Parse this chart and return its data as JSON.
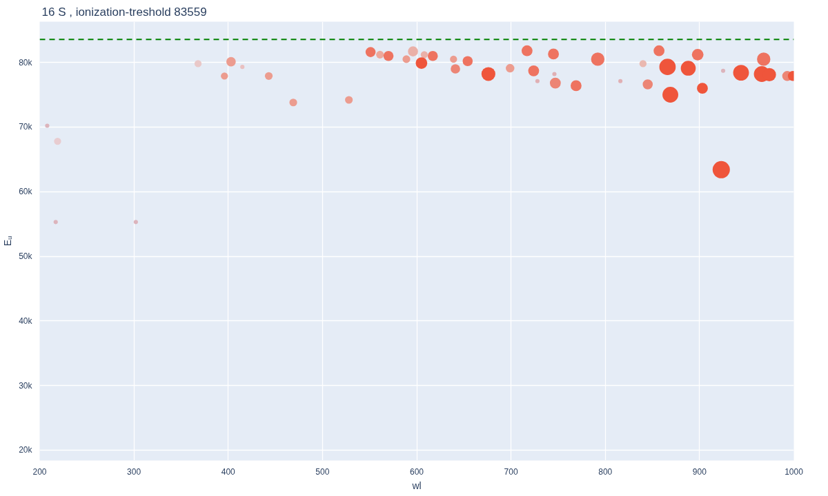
{
  "chart_data": {
    "type": "bubble",
    "title": "16 S , ionization-treshold 83559",
    "xlabel": "wl",
    "ylabel": "Eᵤ",
    "xlim": [
      200,
      1000
    ],
    "ylim": [
      18400,
      86300
    ],
    "xticks": [
      200,
      300,
      400,
      500,
      600,
      700,
      800,
      900,
      1000
    ],
    "yticks": [
      {
        "value": 20000,
        "label": "20k"
      },
      {
        "value": 30000,
        "label": "30k"
      },
      {
        "value": 40000,
        "label": "40k"
      },
      {
        "value": 50000,
        "label": "50k"
      },
      {
        "value": 60000,
        "label": "60k"
      },
      {
        "value": 70000,
        "label": "70k"
      },
      {
        "value": 80000,
        "label": "80k"
      }
    ],
    "grid": true,
    "marker": "circle",
    "ref_lines": [
      {
        "axis": "y",
        "value": 83559,
        "color": "#008000",
        "line_style": "dashed"
      }
    ],
    "series": [
      {
        "x": [
          208,
          219,
          217,
          302,
          368,
          396,
          403,
          415,
          443,
          469,
          528,
          551,
          561,
          570,
          589,
          596,
          608,
          605,
          617,
          639,
          641,
          654,
          676,
          699,
          717,
          724,
          728,
          745,
          746,
          747,
          769,
          792,
          816,
          840,
          845,
          857,
          866,
          869,
          888,
          898,
          903,
          923,
          925,
          944,
          966,
          974,
          968,
          993,
          999
        ],
        "values": [
          70200,
          67800,
          55300,
          55300,
          79800,
          77900,
          80100,
          79300,
          77900,
          73800,
          74200,
          81600,
          81200,
          81000,
          80500,
          81700,
          81200,
          79900,
          81000,
          80500,
          79000,
          80200,
          78200,
          79100,
          81800,
          78700,
          77100,
          81300,
          78200,
          76800,
          76400,
          80500,
          77100,
          79800,
          76600,
          81800,
          79300,
          75000,
          79100,
          81200,
          76000,
          63400,
          78700,
          78400,
          78200,
          78100,
          80500,
          77900,
          77900
        ],
        "sizes": [
          0.06,
          0.17,
          0.06,
          0.06,
          0.17,
          0.17,
          0.3,
          0.06,
          0.2,
          0.2,
          0.2,
          0.34,
          0.2,
          0.34,
          0.2,
          0.34,
          0.17,
          0.45,
          0.34,
          0.17,
          0.3,
          0.34,
          0.65,
          0.25,
          0.4,
          0.4,
          0.06,
          0.4,
          0.06,
          0.4,
          0.4,
          0.6,
          0.06,
          0.17,
          0.34,
          0.4,
          0.9,
          0.84,
          0.75,
          0.45,
          0.4,
          1.0,
          0.06,
          0.84,
          0.84,
          0.6,
          0.6,
          0.34,
          0.34
        ],
        "colors": [
          "#dcb4bc",
          "#e8ccd0",
          "#dcb4bc",
          "#dcb4bc",
          "#e9c8c8",
          "#ec9c8f",
          "#ec9c8f",
          "#e9c0c0",
          "#ec9c8f",
          "#ec9c8f",
          "#ec9c8f",
          "#ee7360",
          "#eea89c",
          "#ee7360",
          "#ec9c8f",
          "#eab0a8",
          "#eab0a8",
          "#ef553b",
          "#ee7360",
          "#ec9c8f",
          "#ec8575",
          "#ee7360",
          "#ef553b",
          "#ec9c8f",
          "#ee7360",
          "#ee7360",
          "#e0b0b4",
          "#ee7360",
          "#e0b0b4",
          "#ec8575",
          "#ee7360",
          "#ee7360",
          "#e0b0b4",
          "#eab8b0",
          "#ec8575",
          "#ee7360",
          "#ef553b",
          "#ef553b",
          "#ef553b",
          "#ee7360",
          "#ef553b",
          "#ef553b",
          "#dcb4bc",
          "#ef553b",
          "#ef553b",
          "#ef553b",
          "#ee7360",
          "#ec8575",
          "#ef553b"
        ]
      }
    ]
  }
}
